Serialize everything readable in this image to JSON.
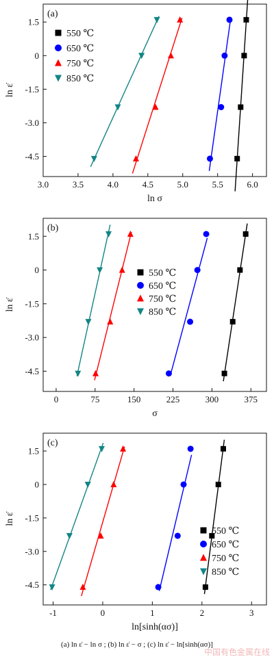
{
  "chart_data": [
    {
      "type": "scatter",
      "panel_label": "(a)",
      "xlabel": "ln σ",
      "ylabel": "ln ε̇",
      "xlim": [
        3.0,
        6.2
      ],
      "ylim": [
        -5.4,
        2.3
      ],
      "xticks": [
        "3.0",
        "3.5",
        "4.0",
        "4.5",
        "5.0",
        "5.5",
        "6.0"
      ],
      "xtick_values": [
        3.0,
        3.5,
        4.0,
        4.5,
        5.0,
        5.5,
        6.0
      ],
      "yticks": [
        "1.5",
        "0",
        "-1.5",
        "-3.0",
        "-4.5"
      ],
      "ytick_values": [
        1.5,
        0,
        -1.5,
        -3.0,
        -4.5
      ],
      "legend_position": "upper-left",
      "series": [
        {
          "name": "550 ℃",
          "marker": "square",
          "color": "#000000",
          "x": [
            5.78,
            5.83,
            5.88,
            5.91
          ],
          "y": [
            -4.6,
            -2.3,
            0,
            1.6
          ],
          "fit_x": [
            5.75,
            5.94
          ]
        },
        {
          "name": "650 ℃",
          "marker": "circle",
          "color": "#0000ff",
          "x": [
            5.39,
            5.55,
            5.6,
            5.67
          ],
          "y": [
            -4.6,
            -2.3,
            0,
            1.6
          ],
          "fit_x": [
            5.38,
            5.69
          ]
        },
        {
          "name": "750 ℃",
          "marker": "triangle-up",
          "color": "#ff0000",
          "x": [
            4.33,
            4.61,
            4.83,
            4.96
          ],
          "y": [
            -4.6,
            -2.3,
            0,
            1.6
          ],
          "fit_x": [
            4.28,
            4.99
          ]
        },
        {
          "name": "850 ℃",
          "marker": "triangle-down",
          "color": "#138585",
          "x": [
            3.73,
            4.07,
            4.41,
            4.63
          ],
          "y": [
            -4.6,
            -2.3,
            0,
            1.6
          ],
          "fit_x": [
            3.68,
            4.66
          ]
        }
      ]
    },
    {
      "type": "scatter",
      "panel_label": "(b)",
      "xlabel": "σ",
      "ylabel": "ln ε̇",
      "xlim": [
        -25,
        405
      ],
      "ylim": [
        -5.4,
        2.3
      ],
      "xticks": [
        "0",
        "75",
        "150",
        "225",
        "300",
        "375"
      ],
      "xtick_values": [
        0,
        75,
        150,
        225,
        300,
        375
      ],
      "yticks": [
        "1.5",
        "0",
        "-1.5",
        "-3.0",
        "-4.5"
      ],
      "ytick_values": [
        1.5,
        0,
        -1.5,
        -3.0,
        -4.5
      ],
      "legend_position": "right",
      "series": [
        {
          "name": "550 ℃",
          "marker": "square",
          "color": "#000000",
          "x": [
            324,
            340,
            354,
            365
          ],
          "y": [
            -4.6,
            -2.3,
            0,
            1.6
          ],
          "fit_x": [
            322,
            368
          ]
        },
        {
          "name": "650 ℃",
          "marker": "circle",
          "color": "#0000ff",
          "x": [
            217,
            258,
            272,
            289
          ],
          "y": [
            -4.6,
            -2.3,
            0,
            1.6
          ],
          "fit_x": [
            220,
            291
          ]
        },
        {
          "name": "750 ℃",
          "marker": "triangle-up",
          "color": "#ff0000",
          "x": [
            76,
            104,
            127,
            143
          ],
          "y": [
            -4.6,
            -2.3,
            0,
            1.6
          ],
          "fit_x": [
            74,
            145
          ]
        },
        {
          "name": "850 ℃",
          "marker": "triangle-down",
          "color": "#138585",
          "x": [
            42,
            62,
            84,
            101
          ],
          "y": [
            -4.6,
            -2.3,
            0,
            1.6
          ],
          "fit_x": [
            40,
            104
          ]
        }
      ]
    },
    {
      "type": "scatter",
      "panel_label": "(c)",
      "xlabel": "ln[sinh(ασ)]",
      "ylabel": "ln ε̇",
      "xlim": [
        -1.2,
        3.3
      ],
      "ylim": [
        -5.4,
        2.3
      ],
      "xticks": [
        "-1",
        "0",
        "1",
        "2",
        "3"
      ],
      "xtick_values": [
        -1,
        0,
        1,
        2,
        3
      ],
      "yticks": [
        "1.5",
        "0",
        "-1.5",
        "-3.0",
        "-4.5"
      ],
      "ytick_values": [
        1.5,
        0,
        -1.5,
        -3.0,
        -4.5
      ],
      "legend_position": "lower-right",
      "series": [
        {
          "name": "550 ℃",
          "marker": "square",
          "color": "#000000",
          "x": [
            2.07,
            2.2,
            2.33,
            2.43
          ],
          "y": [
            -4.6,
            -2.3,
            0,
            1.6
          ],
          "fit_x": [
            2.05,
            2.45
          ]
        },
        {
          "name": "650 ℃",
          "marker": "circle",
          "color": "#0000ff",
          "x": [
            1.12,
            1.51,
            1.63,
            1.77
          ],
          "y": [
            -4.6,
            -2.3,
            0,
            1.6
          ],
          "fit_x": [
            1.14,
            1.79
          ]
        },
        {
          "name": "750 ℃",
          "marker": "triangle-up",
          "color": "#ff0000",
          "x": [
            -0.4,
            -0.04,
            0.22,
            0.41
          ],
          "y": [
            -4.6,
            -2.3,
            0,
            1.6
          ],
          "fit_x": [
            -0.43,
            0.44
          ]
        },
        {
          "name": "850 ℃",
          "marker": "triangle-down",
          "color": "#138585",
          "x": [
            -1.02,
            -0.67,
            -0.3,
            -0.02
          ],
          "y": [
            -4.6,
            -2.3,
            0,
            1.6
          ],
          "fit_x": [
            -1.05,
            0.01
          ]
        }
      ]
    }
  ],
  "caption": "(a)  ln ε̇ − ln σ ; (b)  ln ε̇ − σ ; (c)  ln ε̇ − ln[sinh(ασ)]",
  "watermark": "中国有色金属在线"
}
